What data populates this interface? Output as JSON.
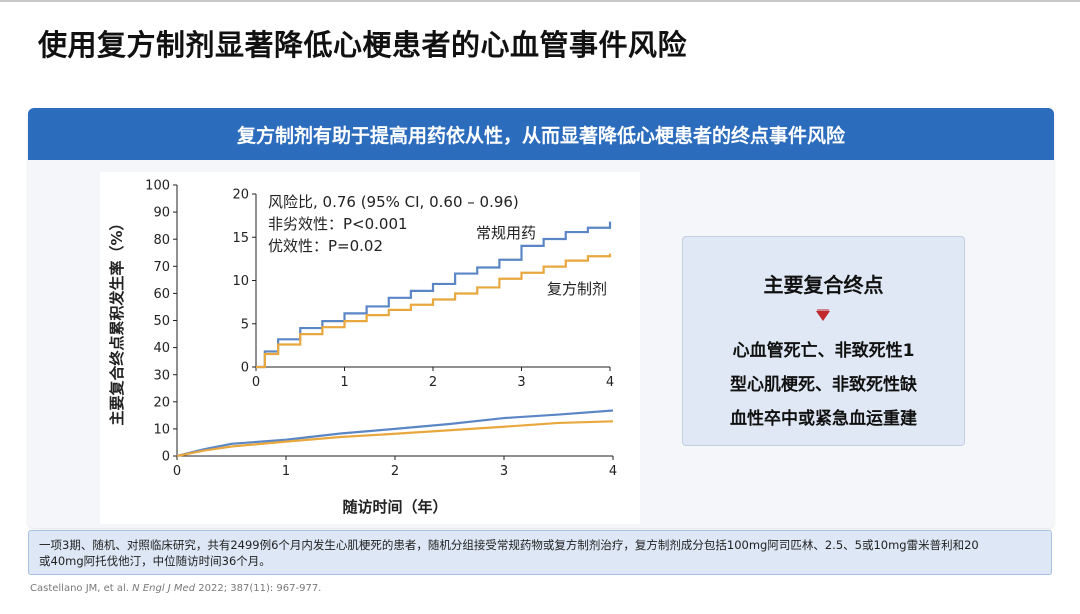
{
  "title": "使用复方制剂显著降低心梗患者的心血管事件风险",
  "panel": {
    "header": "复方制剂有助于提高用药依从性，从而显著降低心梗患者的终点事件风险"
  },
  "info_box": {
    "title": "主要复合终点",
    "lines": [
      "心血管死亡、非致死性1",
      "型心肌梗死、非致死性缺",
      "血性卒中或紧急血运重建"
    ]
  },
  "footnote": {
    "line1": "一项3期、随机、对照临床研究，共有2499例6个月内发生心肌梗死的患者，随机分组接受常规药物或复方制剂治疗，复方制剂成分包括100mg阿司匹林、2.5、5或10mg雷米普利和20",
    "line2": "或40mg阿托伐他汀，中位随访时间36个月。"
  },
  "citation": {
    "authors": "Castellano JM, et al. ",
    "journal": "N Engl J Med",
    "rest": " 2022; 387(11): 967-977."
  },
  "colors": {
    "header": "#2c6cbd",
    "usual_care": "#5b86c5",
    "polypill": "#e8a83e"
  },
  "chart_data": [
    {
      "type": "line",
      "role": "main",
      "xlabel": "随访时间（年）",
      "ylabel": "主要复合终点累积发生率（%）",
      "xlim": [
        0,
        4
      ],
      "ylim": [
        0,
        100
      ],
      "xticks": [
        "0",
        "1",
        "2",
        "3",
        "4"
      ],
      "yticks": [
        "0",
        "10",
        "20",
        "30",
        "40",
        "50",
        "60",
        "70",
        "80",
        "90",
        "100"
      ],
      "series": [
        {
          "name": "常规用药",
          "color": "#5b86c5",
          "x": [
            0,
            0.25,
            0.5,
            1,
            1.5,
            2,
            2.5,
            3,
            3.5,
            4
          ],
          "y": [
            0,
            2.5,
            4.5,
            6,
            8.3,
            10,
            11.8,
            14,
            15.3,
            16.8
          ]
        },
        {
          "name": "复方制剂",
          "color": "#e8a83e",
          "x": [
            0,
            0.25,
            0.5,
            1,
            1.5,
            2,
            2.5,
            3,
            3.5,
            4
          ],
          "y": [
            0,
            2,
            3.5,
            5.3,
            7,
            8.2,
            9.5,
            10.8,
            12.2,
            12.8
          ]
        }
      ]
    },
    {
      "type": "line",
      "role": "inset",
      "annotations": [
        "风险比, 0.76 (95% CI, 0.60 – 0.96)",
        "非劣效性：P<0.001",
        "优效性：P=0.02"
      ],
      "xlim": [
        0,
        4
      ],
      "ylim": [
        0,
        20
      ],
      "xticks": [
        "0",
        "1",
        "2",
        "3",
        "4"
      ],
      "yticks": [
        "0",
        "5",
        "10",
        "15",
        "20"
      ],
      "series": [
        {
          "name": "常规用药",
          "color": "#5b86c5",
          "x": [
            0,
            0.1,
            0.25,
            0.5,
            0.75,
            1,
            1.25,
            1.5,
            1.75,
            2,
            2.25,
            2.5,
            2.75,
            3,
            3.25,
            3.5,
            3.75,
            4
          ],
          "y": [
            0,
            1.8,
            3.2,
            4.5,
            5.3,
            6.2,
            7,
            8,
            8.8,
            9.6,
            10.8,
            11.5,
            12.4,
            14,
            14.8,
            15.6,
            16.1,
            16.8
          ]
        },
        {
          "name": "复方制剂",
          "color": "#e8a83e",
          "x": [
            0,
            0.1,
            0.25,
            0.5,
            0.75,
            1,
            1.25,
            1.5,
            1.75,
            2,
            2.25,
            2.5,
            2.75,
            3,
            3.25,
            3.5,
            3.75,
            4
          ],
          "y": [
            0,
            1.5,
            2.6,
            3.8,
            4.6,
            5.3,
            6,
            6.6,
            7.2,
            7.8,
            8.5,
            9.2,
            10.2,
            10.9,
            11.6,
            12.3,
            12.8,
            13.1
          ]
        }
      ]
    }
  ]
}
